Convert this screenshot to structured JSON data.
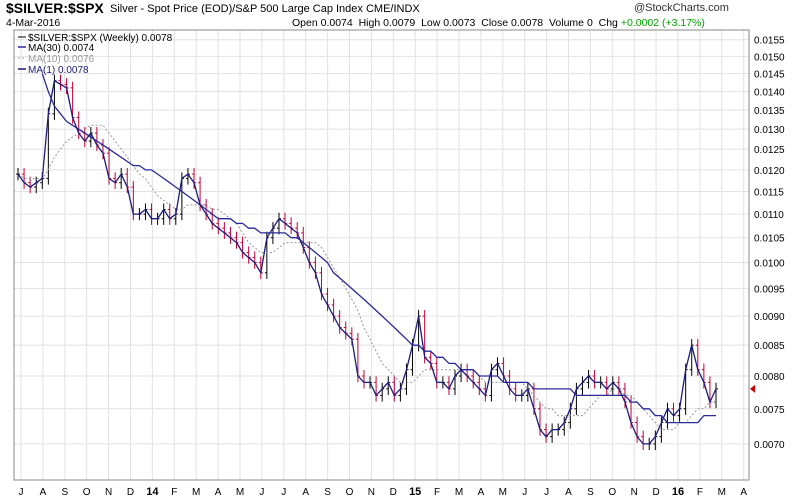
{
  "header": {
    "symbol": "$SILVER:$SPX",
    "description": "Silver - Spot Price (EOD)/S&P 500 Large Cap Index CME/INDX",
    "date": "4-Mar-2016",
    "open_label": "Open",
    "open": "0.0074",
    "high_label": "High",
    "high": "0.0079",
    "low_label": "Low",
    "low": "0.0073",
    "close_label": "Close",
    "close": "0.0078",
    "volume_label": "Volume",
    "volume": "0",
    "chg_label": "Chg",
    "chg": "+0.0002 (+3.17%)",
    "logo": "@StockCharts.com"
  },
  "legend": {
    "price": "$SILVER:$SPX (Weekly) 0.0078",
    "ma30": "MA(30) 0.0074",
    "ma10": "MA(10) 0.0076",
    "ma1": "MA(1) 0.0078"
  },
  "colors": {
    "price_up": "#000000",
    "price_down": "#c0003a",
    "ma30": "#2a2a9a",
    "ma10": "#999999",
    "ma1": "#1c1c7c",
    "grid": "#e2e2e2",
    "down_arrow": "#cc0000"
  },
  "chart_data": {
    "type": "line",
    "scale": "log",
    "period": "weekly",
    "ylim": [
      0.00652,
      0.0158
    ],
    "y_ticks": [
      "0.0155",
      "0.0150",
      "0.0145",
      "0.0140",
      "0.0135",
      "0.0130",
      "0.0125",
      "0.0120",
      "0.0115",
      "0.0110",
      "0.0105",
      "0.0100",
      "0.0095",
      "0.0090",
      "0.0085",
      "0.0080",
      "0.0075",
      "0.0070"
    ],
    "x_ticks": [
      "J",
      "A",
      "S",
      "O",
      "N",
      "D",
      "14",
      "F",
      "M",
      "A",
      "M",
      "J",
      "J",
      "A",
      "S",
      "O",
      "N",
      "D",
      "15",
      "F",
      "M",
      "A",
      "M",
      "J",
      "J",
      "A",
      "S",
      "O",
      "N",
      "D",
      "16",
      "F",
      "M",
      "A"
    ],
    "series": [
      {
        "name": "MA(1)",
        "style": "ohlc-line",
        "values": [
          0.0119,
          0.0117,
          0.0116,
          0.0117,
          0.0118,
          0.0134,
          0.0143,
          0.0142,
          0.0141,
          0.0133,
          0.0129,
          0.0127,
          0.0129,
          0.0126,
          0.0124,
          0.0118,
          0.0117,
          0.0119,
          0.0116,
          0.011,
          0.011,
          0.0111,
          0.0109,
          0.0109,
          0.0111,
          0.0109,
          0.011,
          0.0118,
          0.0119,
          0.0117,
          0.0112,
          0.011,
          0.0108,
          0.0107,
          0.0106,
          0.0105,
          0.0104,
          0.0102,
          0.0101,
          0.01,
          0.0098,
          0.0105,
          0.0107,
          0.0109,
          0.0108,
          0.0107,
          0.0106,
          0.0103,
          0.01,
          0.0098,
          0.0094,
          0.0092,
          0.009,
          0.0088,
          0.0087,
          0.0086,
          0.008,
          0.0079,
          0.0079,
          0.0077,
          0.0078,
          0.0079,
          0.0077,
          0.0078,
          0.0081,
          0.0085,
          0.009,
          0.0083,
          0.0082,
          0.0079,
          0.0079,
          0.0078,
          0.008,
          0.0081,
          0.008,
          0.0079,
          0.0078,
          0.0077,
          0.0081,
          0.0082,
          0.008,
          0.0078,
          0.0077,
          0.0077,
          0.0078,
          0.0075,
          0.0072,
          0.0071,
          0.0072,
          0.0072,
          0.0073,
          0.0075,
          0.0078,
          0.0079,
          0.008,
          0.0079,
          0.0079,
          0.0078,
          0.0079,
          0.0078,
          0.0076,
          0.0073,
          0.0071,
          0.007,
          0.007,
          0.0071,
          0.0073,
          0.0075,
          0.0074,
          0.0075,
          0.0081,
          0.0085,
          0.0081,
          0.0079,
          0.0076,
          0.0078
        ]
      },
      {
        "name": "MA(10)",
        "style": "dotted",
        "values": [
          0.0119,
          0.0118,
          0.0118,
          0.0118,
          0.0118,
          0.012,
          0.0123,
          0.0125,
          0.0127,
          0.0128,
          0.0129,
          0.013,
          0.0131,
          0.0131,
          0.0131,
          0.0129,
          0.0127,
          0.0125,
          0.0123,
          0.0121,
          0.0119,
          0.0118,
          0.0116,
          0.0114,
          0.0113,
          0.0112,
          0.0111,
          0.0111,
          0.0112,
          0.0112,
          0.0112,
          0.0112,
          0.0111,
          0.0111,
          0.011,
          0.0109,
          0.0108,
          0.0106,
          0.0104,
          0.0103,
          0.0102,
          0.0102,
          0.0102,
          0.0103,
          0.0104,
          0.0104,
          0.0104,
          0.0104,
          0.0104,
          0.0104,
          0.0103,
          0.0101,
          0.0099,
          0.0097,
          0.0095,
          0.0093,
          0.0091,
          0.0088,
          0.0086,
          0.0084,
          0.0082,
          0.0081,
          0.008,
          0.0079,
          0.0079,
          0.0079,
          0.008,
          0.0081,
          0.0081,
          0.0081,
          0.0081,
          0.0081,
          0.0081,
          0.0081,
          0.0081,
          0.0081,
          0.008,
          0.0079,
          0.0079,
          0.0079,
          0.0079,
          0.0079,
          0.0079,
          0.0079,
          0.0078,
          0.0077,
          0.0076,
          0.0075,
          0.0075,
          0.0074,
          0.0074,
          0.0074,
          0.0074,
          0.0074,
          0.0075,
          0.0076,
          0.0077,
          0.0077,
          0.0078,
          0.0078,
          0.0077,
          0.0077,
          0.0076,
          0.0075,
          0.0074,
          0.0073,
          0.0072,
          0.0072,
          0.0072,
          0.0073,
          0.0073,
          0.0074,
          0.0075,
          0.0075,
          0.0076,
          0.0076
        ]
      },
      {
        "name": "MA(30)",
        "style": "solid",
        "values": [
          null,
          null,
          null,
          null,
          0.0145,
          0.014,
          0.0136,
          0.0134,
          0.0132,
          0.0131,
          0.013,
          0.0129,
          0.0128,
          0.0127,
          0.0126,
          0.0125,
          0.0124,
          0.0123,
          0.0122,
          0.0121,
          0.0121,
          0.012,
          0.012,
          0.0119,
          0.0118,
          0.0117,
          0.0116,
          0.0115,
          0.0114,
          0.0113,
          0.0112,
          0.0111,
          0.011,
          0.0109,
          0.0109,
          0.0109,
          0.0108,
          0.0108,
          0.0107,
          0.0107,
          0.0106,
          0.0106,
          0.0106,
          0.0106,
          0.0106,
          0.0105,
          0.0105,
          0.0104,
          0.0103,
          0.0102,
          0.0101,
          0.01,
          0.0098,
          0.0097,
          0.0096,
          0.0095,
          0.0094,
          0.0093,
          0.0092,
          0.0091,
          0.009,
          0.0089,
          0.0088,
          0.0087,
          0.0086,
          0.0085,
          0.0085,
          0.0084,
          0.0084,
          0.0083,
          0.0083,
          0.0082,
          0.0082,
          0.0081,
          0.0081,
          0.0081,
          0.008,
          0.008,
          0.008,
          0.008,
          0.0079,
          0.0079,
          0.0079,
          0.0079,
          0.0079,
          0.0078,
          0.0078,
          0.0078,
          0.0078,
          0.0078,
          0.0078,
          0.0078,
          0.0077,
          0.0077,
          0.0077,
          0.0077,
          0.0077,
          0.0077,
          0.0077,
          0.0077,
          0.0077,
          0.0076,
          0.0076,
          0.0075,
          0.0075,
          0.0074,
          0.0074,
          0.0073,
          0.0073,
          0.0073,
          0.0073,
          0.0073,
          0.0073,
          0.0074,
          0.0074,
          0.0074
        ]
      }
    ]
  }
}
